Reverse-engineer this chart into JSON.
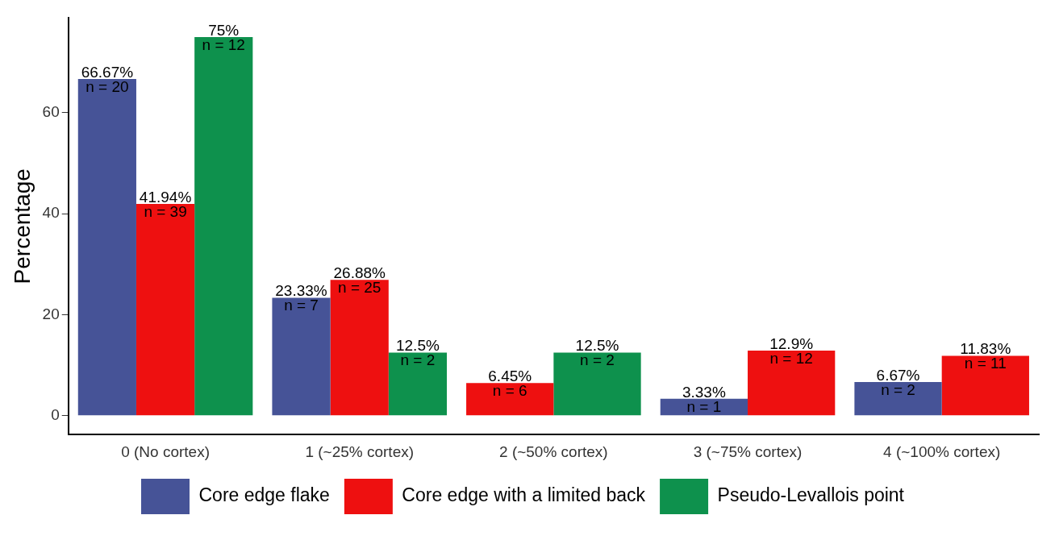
{
  "chart_data": {
    "type": "bar",
    "ylabel": "Percentage",
    "categories": [
      "0 (No cortex)",
      "1 (~25% cortex)",
      "2 (~50% cortex)",
      "3 (~75% cortex)",
      "4 (~100% cortex)"
    ],
    "series": [
      {
        "name": "Core edge flake",
        "color": "#465397",
        "values": [
          66.67,
          23.33,
          null,
          3.33,
          6.67
        ],
        "value_labels": [
          "66.67%\nn = 20",
          "23.33%\nn = 7",
          null,
          "3.33%\nn = 1",
          "6.67%\nn = 2"
        ]
      },
      {
        "name": "Core edge with a limited back",
        "color": "#ee1010",
        "values": [
          41.94,
          26.88,
          6.45,
          12.9,
          11.83
        ],
        "value_labels": [
          "41.94%\nn = 39",
          "26.88%\nn = 25",
          "6.45%\nn = 6",
          "12.9%\nn = 12",
          "11.83%\nn = 11"
        ]
      },
      {
        "name": "Pseudo-Levallois point",
        "color": "#0e914d",
        "values": [
          75,
          12.5,
          12.5,
          null,
          null
        ],
        "value_labels": [
          "75%\nn = 12",
          "12.5%\nn = 2",
          "12.5%\nn = 2",
          null,
          null
        ]
      }
    ],
    "ylim": [
      -3.75,
      78.75
    ],
    "yticks": [
      0,
      20,
      40,
      60
    ],
    "grid": false,
    "legend": "bottom"
  }
}
